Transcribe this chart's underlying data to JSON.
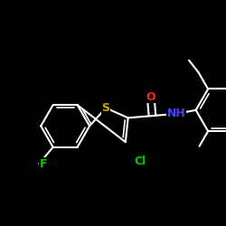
{
  "background_color": "#000000",
  "atom_colors": {
    "C": "#ffffff",
    "Cl": "#00cc00",
    "O": "#ff2222",
    "S": "#ccaa00",
    "N": "#4444ff",
    "F": "#00cc00",
    "H": "#ffffff"
  },
  "bond_color": "#ffffff",
  "bond_width": 1.5,
  "font_size": 9
}
